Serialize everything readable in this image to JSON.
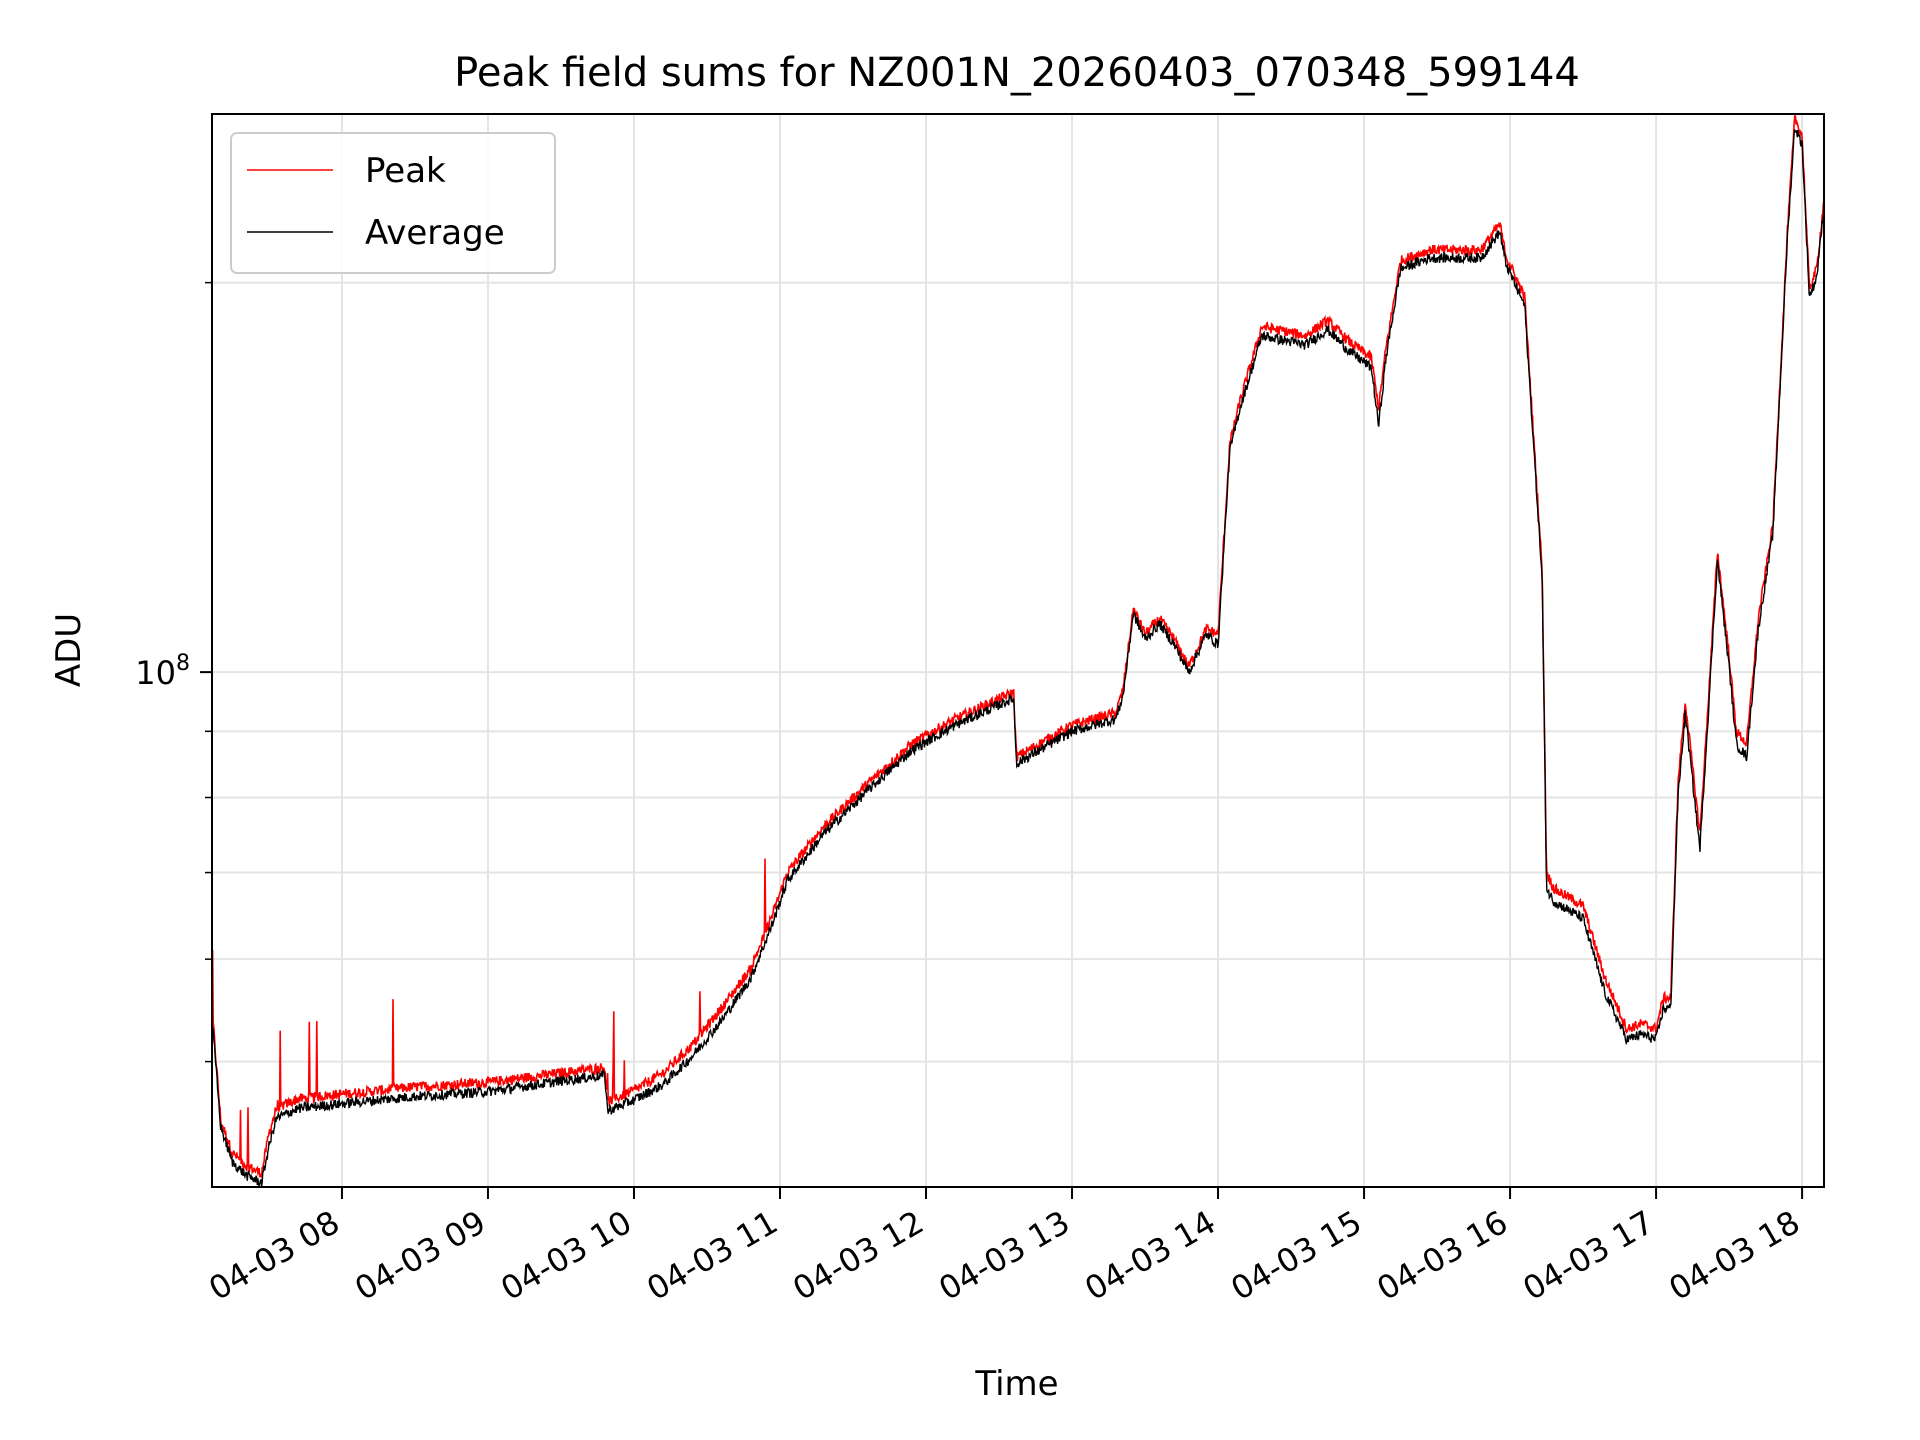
{
  "chart_data": {
    "type": "line",
    "title": "Peak field sums for NZ001N_20260403_070348_599144",
    "xlabel": "Time",
    "ylabel": "ADU",
    "y_scale": "log",
    "ylim": [
      40000000,
      270000000
    ],
    "xlim_hours": [
      7.11,
      18.15
    ],
    "grid": true,
    "legend_location": "upper-left",
    "x_ticks": [
      {
        "hour": 8,
        "label": "04-03 08"
      },
      {
        "hour": 9,
        "label": "04-03 09"
      },
      {
        "hour": 10,
        "label": "04-03 10"
      },
      {
        "hour": 11,
        "label": "04-03 11"
      },
      {
        "hour": 12,
        "label": "04-03 12"
      },
      {
        "hour": 13,
        "label": "04-03 13"
      },
      {
        "hour": 14,
        "label": "04-03 14"
      },
      {
        "hour": 15,
        "label": "04-03 15"
      },
      {
        "hour": 16,
        "label": "04-03 16"
      },
      {
        "hour": 17,
        "label": "04-03 17"
      },
      {
        "hour": 18,
        "label": "04-03 18"
      }
    ],
    "y_major_tick": {
      "value": 100000000,
      "label_base": "10",
      "label_exp": "8"
    },
    "y_minor_ticks": [
      50000000,
      60000000,
      70000000,
      80000000,
      90000000,
      200000000
    ],
    "series": [
      {
        "name": "Peak",
        "color": "#ff0000",
        "x": [
          7.11,
          7.17,
          7.25,
          7.35,
          7.45,
          7.5,
          7.55,
          7.7,
          8.0,
          8.5,
          9.0,
          9.5,
          9.8,
          9.82,
          10.0,
          10.2,
          10.4,
          10.6,
          10.8,
          10.95,
          11.05,
          11.3,
          11.6,
          11.9,
          12.2,
          12.6,
          12.62,
          13.0,
          13.3,
          13.35,
          13.42,
          13.5,
          13.6,
          13.7,
          13.8,
          13.92,
          14.0,
          14.08,
          14.15,
          14.3,
          14.6,
          14.75,
          14.9,
          15.05,
          15.1,
          15.15,
          15.25,
          15.45,
          15.8,
          15.93,
          15.97,
          16.1,
          16.22,
          16.25,
          16.3,
          16.5,
          16.65,
          16.8,
          16.9,
          17.0,
          17.05,
          17.1,
          17.15,
          17.2,
          17.3,
          17.35,
          17.42,
          17.5,
          17.55,
          17.62,
          17.7,
          17.8,
          17.9,
          17.95,
          18.0,
          18.05,
          18.1,
          18.15
        ],
        "y": [
          55000000,
          45000000,
          42500000,
          41500000,
          41000000,
          44000000,
          46000000,
          46800000,
          47200000,
          47800000,
          48200000,
          49000000,
          49500000,
          46500000,
          47500000,
          49000000,
          51500000,
          55000000,
          59000000,
          65000000,
          70000000,
          76000000,
          82000000,
          88000000,
          92000000,
          96500000,
          86000000,
          91000000,
          93000000,
          97000000,
          112000000,
          107000000,
          110000000,
          106000000,
          101000000,
          108000000,
          107000000,
          150000000,
          162000000,
          185000000,
          182000000,
          187000000,
          180000000,
          175000000,
          160000000,
          178000000,
          208000000,
          212000000,
          212000000,
          222000000,
          210000000,
          195000000,
          120000000,
          70000000,
          68000000,
          66000000,
          58000000,
          53000000,
          53500000,
          53000000,
          56000000,
          56000000,
          82000000,
          95000000,
          75000000,
          92000000,
          124000000,
          103000000,
          90000000,
          88000000,
          110000000,
          130000000,
          220000000,
          268000000,
          260000000,
          198000000,
          205000000,
          232000000
        ]
      },
      {
        "name": "Average",
        "color": "#000000",
        "x": [
          7.11,
          7.17,
          7.25,
          7.35,
          7.45,
          7.5,
          7.55,
          7.7,
          8.0,
          8.5,
          9.0,
          9.5,
          9.8,
          9.82,
          10.0,
          10.2,
          10.4,
          10.6,
          10.8,
          10.95,
          11.05,
          11.3,
          11.6,
          11.9,
          12.2,
          12.6,
          12.62,
          13.0,
          13.3,
          13.35,
          13.42,
          13.5,
          13.6,
          13.7,
          13.8,
          13.92,
          14.0,
          14.08,
          14.15,
          14.3,
          14.6,
          14.75,
          14.9,
          15.05,
          15.1,
          15.15,
          15.25,
          15.45,
          15.8,
          15.93,
          15.97,
          16.1,
          16.22,
          16.25,
          16.3,
          16.5,
          16.65,
          16.8,
          16.9,
          17.0,
          17.05,
          17.1,
          17.15,
          17.2,
          17.3,
          17.35,
          17.42,
          17.5,
          17.55,
          17.62,
          17.7,
          17.8,
          17.9,
          17.95,
          18.0,
          18.05,
          18.1,
          18.15
        ],
        "y": [
          54000000,
          44500000,
          41800000,
          40800000,
          40300000,
          43000000,
          45200000,
          46000000,
          46400000,
          47000000,
          47400000,
          48300000,
          48800000,
          45800000,
          46700000,
          48000000,
          50500000,
          53800000,
          58000000,
          64000000,
          69000000,
          75000000,
          81000000,
          87000000,
          91000000,
          95500000,
          85000000,
          90000000,
          92000000,
          96000000,
          111000000,
          106000000,
          109000000,
          105000000,
          100000000,
          107000000,
          105000000,
          148000000,
          160000000,
          182000000,
          179000000,
          184000000,
          177000000,
          172000000,
          155000000,
          175000000,
          205000000,
          209000000,
          209000000,
          219000000,
          207000000,
          192000000,
          118000000,
          68000000,
          66500000,
          64500000,
          56500000,
          52000000,
          52500000,
          52000000,
          55000000,
          55000000,
          80000000,
          93000000,
          73000000,
          90000000,
          122000000,
          101000000,
          88000000,
          86000000,
          108000000,
          128000000,
          217000000,
          264000000,
          256000000,
          195000000,
          202000000,
          229000000
        ]
      }
    ]
  }
}
